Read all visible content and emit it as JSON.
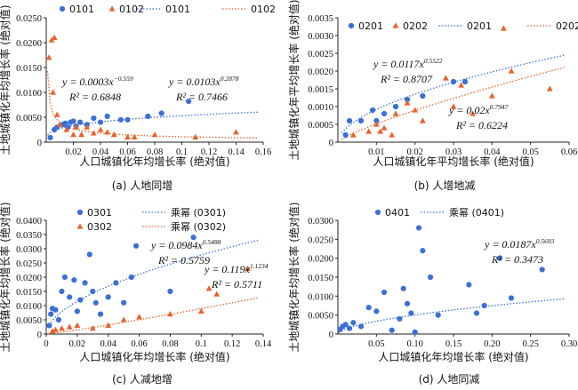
{
  "chart_data": [
    {
      "type": "scatter",
      "caption": "(a) 人地同增",
      "xlabel": "人口城镇化年均增长率 (绝对值)",
      "ylabel": "土地城镇化年均增长率 (绝对值)",
      "xlim": [
        0,
        0.16
      ],
      "ylim": [
        0,
        0.025
      ],
      "xticks": [
        "0.02",
        "0.04",
        "0.06",
        "0.08",
        "0.1",
        "0.12",
        "0.14",
        "0.16"
      ],
      "yticks": [
        "0",
        "0.0050",
        "0.0100",
        "0.0150",
        "0.0200",
        "0.0250"
      ],
      "legend": [
        "0101",
        "0102",
        "0101",
        "0102"
      ],
      "series": [
        {
          "name": "0101",
          "marker": "circle",
          "color": "#3b6fd8",
          "points": [
            [
              0.003,
              0.0009
            ],
            [
              0.006,
              0.0025
            ],
            [
              0.008,
              0.003
            ],
            [
              0.012,
              0.0035
            ],
            [
              0.014,
              0.0038
            ],
            [
              0.016,
              0.003
            ],
            [
              0.018,
              0.004
            ],
            [
              0.02,
              0.0042
            ],
            [
              0.022,
              0.0032
            ],
            [
              0.025,
              0.004
            ],
            [
              0.03,
              0.0035
            ],
            [
              0.035,
              0.0048
            ],
            [
              0.04,
              0.004
            ],
            [
              0.045,
              0.0052
            ],
            [
              0.055,
              0.0045
            ],
            [
              0.06,
              0.0045
            ],
            [
              0.075,
              0.0052
            ],
            [
              0.085,
              0.0058
            ],
            [
              0.105,
              0.0082
            ]
          ],
          "fit": {
            "a": 0.0103,
            "b": 0.2878,
            "r2": 0.7466,
            "color": "#3b6fd8"
          }
        },
        {
          "name": "0102",
          "marker": "triangle",
          "color": "#e8622a",
          "points": [
            [
              0.002,
              0.017
            ],
            [
              0.004,
              0.0205
            ],
            [
              0.006,
              0.021
            ],
            [
              0.005,
              0.01
            ],
            [
              0.008,
              0.0055
            ],
            [
              0.01,
              0.0035
            ],
            [
              0.015,
              0.0025
            ],
            [
              0.02,
              0.0015
            ],
            [
              0.022,
              0.003
            ],
            [
              0.026,
              0.0015
            ],
            [
              0.03,
              0.003
            ],
            [
              0.035,
              0.0018
            ],
            [
              0.04,
              0.0025
            ],
            [
              0.045,
              0.002
            ],
            [
              0.05,
              0.0015
            ],
            [
              0.06,
              0.001
            ],
            [
              0.065,
              0.001
            ],
            [
              0.08,
              0.0015
            ],
            [
              0.11,
              0.001
            ],
            [
              0.14,
              0.002
            ]
          ],
          "fit": {
            "a": 0.0003,
            "b": -0.559,
            "r2": 0.6848,
            "color": "#e8622a"
          }
        }
      ],
      "annotations": [
        {
          "eq": "y = 0.0003x",
          "exp": "−0.559",
          "r2": "R² = 0.6848"
        },
        {
          "eq": "y = 0.0103x",
          "exp": "0.2878",
          "r2": "R² = 0.7466"
        }
      ]
    },
    {
      "type": "scatter",
      "caption": "(b) 人增地减",
      "xlabel": "人口城镇化年平均增长率 (绝对值)",
      "ylabel": "土地城镇化年平均增长率 (绝对值)",
      "xlim": [
        0,
        0.06
      ],
      "ylim": [
        0,
        0.0035
      ],
      "xticks": [
        "0.01",
        "0.02",
        "0.03",
        "0.04",
        "0.05",
        "0.06"
      ],
      "yticks": [
        "0",
        "0.0005",
        "0.0010",
        "0.0015",
        "0.0020",
        "0.0025",
        "0.0030",
        "0.0035"
      ],
      "legend": [
        "0201",
        "0202",
        "0201",
        "0202"
      ],
      "series": [
        {
          "name": "0201",
          "marker": "circle",
          "color": "#3b6fd8",
          "points": [
            [
              0.002,
              0.0002
            ],
            [
              0.003,
              0.0006
            ],
            [
              0.006,
              0.0006
            ],
            [
              0.009,
              0.0009
            ],
            [
              0.01,
              0.0006
            ],
            [
              0.012,
              0.0008
            ],
            [
              0.015,
              0.001
            ],
            [
              0.018,
              0.0012
            ],
            [
              0.022,
              0.0013
            ],
            [
              0.03,
              0.0017
            ],
            [
              0.033,
              0.0017
            ]
          ],
          "fit": {
            "a": 0.0117,
            "b": 0.5522,
            "r2": 0.8707,
            "color": "#3b6fd8"
          }
        },
        {
          "name": "0202",
          "marker": "triangle",
          "color": "#e8622a",
          "points": [
            [
              0.004,
              0.0002
            ],
            [
              0.008,
              0.0003
            ],
            [
              0.01,
              0.0005
            ],
            [
              0.011,
              0.0003
            ],
            [
              0.012,
              0.0004
            ],
            [
              0.014,
              0.0002
            ],
            [
              0.015,
              0.0008
            ],
            [
              0.018,
              0.0011
            ],
            [
              0.02,
              0.0009
            ],
            [
              0.022,
              0.0006
            ],
            [
              0.028,
              0.0018
            ],
            [
              0.03,
              0.001
            ],
            [
              0.032,
              0.0016
            ],
            [
              0.035,
              0.0008
            ],
            [
              0.04,
              0.0013
            ],
            [
              0.043,
              0.0032
            ],
            [
              0.045,
              0.002
            ],
            [
              0.055,
              0.0015
            ]
          ],
          "fit": {
            "a": 0.02,
            "b": 0.7947,
            "r2": 0.6224,
            "color": "#e8622a"
          }
        }
      ],
      "annotations": [
        {
          "eq": "y = 0.0117x",
          "exp": "0.5522",
          "r2": "R² = 0.8707"
        },
        {
          "eq": "y = 0.02x",
          "exp": "0.7947",
          "r2": "R² = 0.6224"
        }
      ]
    },
    {
      "type": "scatter",
      "caption": "(c) 人减地增",
      "xlabel": "人口城镇化年均增长率 (绝对值)",
      "ylabel": "土地城镇化年均增长率 (绝对值)",
      "xlim": [
        0,
        0.14
      ],
      "ylim": [
        0,
        0.04
      ],
      "xticks": [
        "0",
        "0.02",
        "0.04",
        "0.06",
        "0.08",
        "0.1",
        "0.12",
        "0.14"
      ],
      "yticks": [
        "0",
        "0.0050",
        "0.0100",
        "0.0150",
        "0.0200",
        "0.0250",
        "0.0300",
        "0.0350",
        "0.0400"
      ],
      "legend": [
        "0301",
        "乘幂 (0301)",
        "0302",
        "乘幂 (0302)"
      ],
      "series": [
        {
          "name": "0301",
          "marker": "circle",
          "color": "#3b6fd8",
          "points": [
            [
              0.002,
              0.003
            ],
            [
              0.003,
              0.007
            ],
            [
              0.004,
              0.009
            ],
            [
              0.006,
              0.0085
            ],
            [
              0.008,
              0.005
            ],
            [
              0.01,
              0.015
            ],
            [
              0.012,
              0.02
            ],
            [
              0.015,
              0.013
            ],
            [
              0.018,
              0.019
            ],
            [
              0.02,
              0.008
            ],
            [
              0.022,
              0.012
            ],
            [
              0.025,
              0.018
            ],
            [
              0.028,
              0.028
            ],
            [
              0.03,
              0.015
            ],
            [
              0.032,
              0.011
            ],
            [
              0.035,
              0.007
            ],
            [
              0.04,
              0.013
            ],
            [
              0.045,
              0.018
            ],
            [
              0.05,
              0.011
            ],
            [
              0.055,
              0.02
            ],
            [
              0.058,
              0.031
            ],
            [
              0.08,
              0.015
            ],
            [
              0.095,
              0.034
            ]
          ],
          "fit": {
            "a": 0.0984,
            "b": 0.5488,
            "r2": 0.5759,
            "color": "#3b6fd8"
          }
        },
        {
          "name": "0302",
          "marker": "triangle",
          "color": "#e8622a",
          "points": [
            [
              0.004,
              0.001
            ],
            [
              0.006,
              0.0015
            ],
            [
              0.01,
              0.002
            ],
            [
              0.015,
              0.0025
            ],
            [
              0.02,
              0.003
            ],
            [
              0.03,
              0.002
            ],
            [
              0.04,
              0.003
            ],
            [
              0.05,
              0.005
            ],
            [
              0.06,
              0.006
            ],
            [
              0.08,
              0.007
            ],
            [
              0.1,
              0.008
            ],
            [
              0.105,
              0.016
            ],
            [
              0.11,
              0.014
            ],
            [
              0.13,
              0.023
            ]
          ],
          "fit": {
            "a": 0.119,
            "b": 1.1234,
            "r2": 0.5711,
            "color": "#e8622a"
          }
        }
      ],
      "annotations": [
        {
          "eq": "y = 0.0984x",
          "exp": "0.5488",
          "r2": "R² = 0.5759"
        },
        {
          "eq": "y = 0.119x",
          "exp": "1.1234",
          "r2": "R² = 0.5711"
        }
      ]
    },
    {
      "type": "scatter",
      "caption": "(d) 人地同减",
      "xlabel": "人口城镇化年均增长率 (绝对值)",
      "ylabel": "土地城镇化年均增长率 (绝对值)",
      "xlim": [
        0,
        0.3
      ],
      "ylim": [
        0,
        0.03
      ],
      "xticks": [
        "0.05",
        "0.10",
        "0.15",
        "0.20",
        "0.25",
        "0.30"
      ],
      "yticks": [
        "0",
        "0.0050",
        "0.0100",
        "0.0150",
        "0.0200",
        "0.0250",
        "0.0300"
      ],
      "legend": [
        "0401",
        "乘幂 (0401)"
      ],
      "series": [
        {
          "name": "0401",
          "marker": "circle",
          "color": "#3b6fd8",
          "points": [
            [
              0.003,
              0.0012
            ],
            [
              0.006,
              0.002
            ],
            [
              0.01,
              0.0025
            ],
            [
              0.015,
              0.0015
            ],
            [
              0.02,
              0.003
            ],
            [
              0.03,
              0.002
            ],
            [
              0.04,
              0.007
            ],
            [
              0.05,
              0.006
            ],
            [
              0.06,
              0.011
            ],
            [
              0.07,
              0.001
            ],
            [
              0.08,
              0.004
            ],
            [
              0.085,
              0.012
            ],
            [
              0.09,
              0.008
            ],
            [
              0.095,
              0.0055
            ],
            [
              0.1,
              0.0005
            ],
            [
              0.105,
              0.028
            ],
            [
              0.11,
              0.022
            ],
            [
              0.12,
              0.015
            ],
            [
              0.13,
              0.005
            ],
            [
              0.17,
              0.013
            ],
            [
              0.18,
              0.0055
            ],
            [
              0.19,
              0.0075
            ],
            [
              0.21,
              0.02
            ],
            [
              0.225,
              0.0095
            ],
            [
              0.265,
              0.017
            ]
          ],
          "fit": {
            "a": 0.0187,
            "b": 0.5693,
            "r2": 0.3473,
            "color": "#3b6fd8"
          }
        }
      ],
      "annotations": [
        {
          "eq": "y = 0.0187x",
          "exp": "0.5693",
          "r2": "R² = 0.3473"
        }
      ]
    }
  ]
}
